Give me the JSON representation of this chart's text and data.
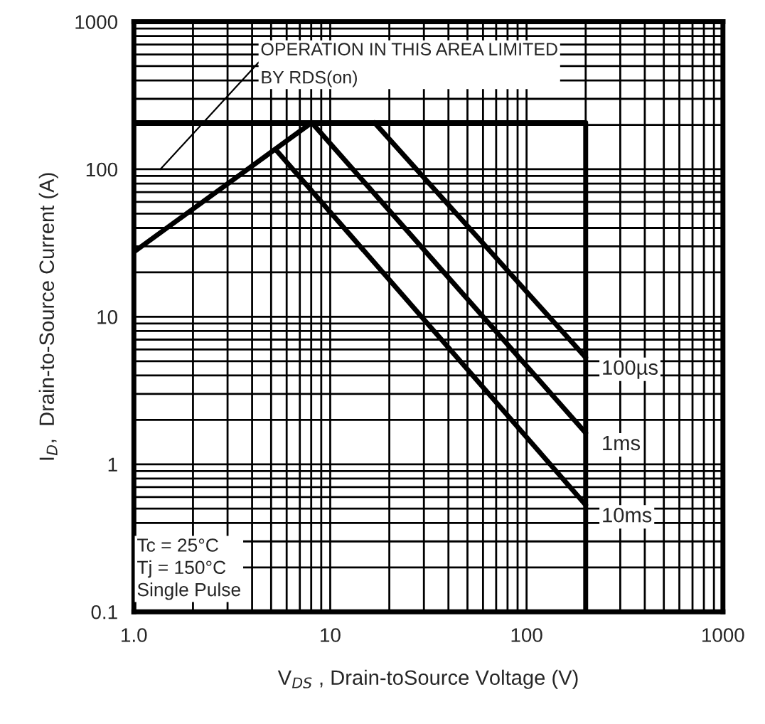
{
  "chart_data": {
    "type": "line",
    "xlabel": "V$_{DS}$ , Drain-toSource Voltage (V)",
    "ylabel": "I$_{D}$,  Drain-to-Source Current (A)",
    "log": "xy",
    "grid": true,
    "legend": false,
    "xlim": [
      1,
      1000
    ],
    "ylim": [
      0.1,
      1000
    ],
    "xticks": [
      {
        "value": 1,
        "label": "1.0"
      },
      10,
      100,
      1000
    ],
    "yticks": [
      0.1,
      1,
      10,
      100,
      1000
    ],
    "series": [
      {
        "color": "#000000",
        "x": [
          1,
          8.05
        ],
        "values": [
          27.5,
          207
        ]
      },
      {
        "color": "#000000",
        "x": [
          1,
          200,
          200
        ],
        "values": [
          207,
          207,
          0.1
        ]
      },
      {
        "name": "100µs",
        "color": "#000000",
        "x": [
          16.8,
          200
        ],
        "values": [
          207,
          5.3
        ]
      },
      {
        "name": "1ms",
        "color": "#000000",
        "x": [
          8.05,
          200
        ],
        "values": [
          207,
          1.63
        ]
      },
      {
        "name": "10ms",
        "color": "#000000",
        "x": [
          5.3,
          200
        ],
        "values": [
          135,
          0.53
        ]
      }
    ],
    "annotations": [
      "OPERATION IN THIS AREA LIMITED\nBY RDS(on)",
      "Tc = 25°C\nTj = 150°C\nSingle Pulse"
    ]
  }
}
